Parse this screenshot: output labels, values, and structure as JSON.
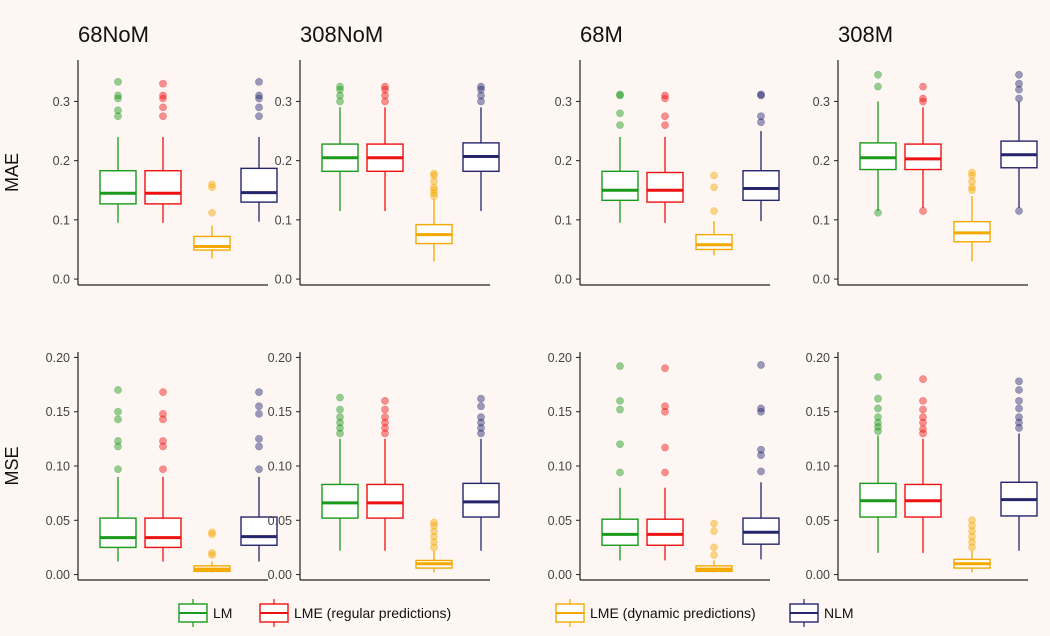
{
  "chart_data": {
    "type": "box",
    "columns": [
      "68NoM",
      "308NoM",
      "68M",
      "308M"
    ],
    "rows": [
      "MAE",
      "MSE"
    ],
    "legend": {
      "placement": "bottom"
    },
    "series": [
      {
        "key": "lm",
        "name": "LM",
        "color": "#1a9a1a"
      },
      {
        "key": "lme_reg",
        "name": "LME (regular predictions)",
        "color": "#ee1111"
      },
      {
        "key": "lme_dyn",
        "name": "LME (dynamic predictions)",
        "color": "#f5a800"
      },
      {
        "key": "nlm",
        "name": "NLM",
        "color": "#25256e"
      }
    ],
    "axes": {
      "MAE": {
        "ylim": [
          -0.01,
          0.37
        ],
        "ticks": [
          0.0,
          0.1,
          0.2,
          0.3
        ],
        "tick_labels": [
          "0.0",
          "0.1",
          "0.2",
          "0.3"
        ]
      },
      "MSE": {
        "ylim": [
          -0.005,
          0.205
        ],
        "ticks": [
          0.0,
          0.05,
          0.1,
          0.15,
          0.2
        ],
        "tick_labels": [
          "0.00",
          "0.05",
          "0.10",
          "0.15",
          "0.20"
        ]
      }
    },
    "panels": [
      {
        "row": "MAE",
        "col": "68NoM",
        "boxes": [
          {
            "series": "lm",
            "min": 0.095,
            "q1": 0.127,
            "median": 0.145,
            "q3": 0.183,
            "max": 0.24,
            "outliers": [
              0.275,
              0.285,
              0.305,
              0.31,
              0.333
            ]
          },
          {
            "series": "lme_reg",
            "min": 0.095,
            "q1": 0.127,
            "median": 0.145,
            "q3": 0.183,
            "max": 0.24,
            "outliers": [
              0.275,
              0.29,
              0.305,
              0.31,
              0.33
            ]
          },
          {
            "series": "lme_dyn",
            "min": 0.035,
            "q1": 0.049,
            "median": 0.055,
            "q3": 0.072,
            "max": 0.09,
            "outliers": [
              0.112,
              0.155,
              0.16
            ]
          },
          {
            "series": "nlm",
            "min": 0.097,
            "q1": 0.13,
            "median": 0.146,
            "q3": 0.187,
            "max": 0.24,
            "outliers": [
              0.275,
              0.29,
              0.305,
              0.31,
              0.333
            ]
          }
        ]
      },
      {
        "row": "MAE",
        "col": "308NoM",
        "boxes": [
          {
            "series": "lm",
            "min": 0.115,
            "q1": 0.182,
            "median": 0.205,
            "q3": 0.228,
            "max": 0.29,
            "outliers": [
              0.3,
              0.31,
              0.32,
              0.325
            ]
          },
          {
            "series": "lme_reg",
            "min": 0.115,
            "q1": 0.182,
            "median": 0.205,
            "q3": 0.228,
            "max": 0.29,
            "outliers": [
              0.3,
              0.31,
              0.32,
              0.325
            ]
          },
          {
            "series": "lme_dyn",
            "min": 0.03,
            "q1": 0.06,
            "median": 0.075,
            "q3": 0.092,
            "max": 0.135,
            "outliers": [
              0.14,
              0.145,
              0.15,
              0.155,
              0.165,
              0.175,
              0.178
            ]
          },
          {
            "series": "nlm",
            "min": 0.115,
            "q1": 0.182,
            "median": 0.207,
            "q3": 0.23,
            "max": 0.29,
            "outliers": [
              0.3,
              0.31,
              0.32,
              0.325
            ]
          }
        ]
      },
      {
        "row": "MAE",
        "col": "68M",
        "boxes": [
          {
            "series": "lm",
            "min": 0.095,
            "q1": 0.133,
            "median": 0.15,
            "q3": 0.182,
            "max": 0.24,
            "outliers": [
              0.26,
              0.28,
              0.31,
              0.312
            ]
          },
          {
            "series": "lme_reg",
            "min": 0.095,
            "q1": 0.13,
            "median": 0.15,
            "q3": 0.18,
            "max": 0.24,
            "outliers": [
              0.26,
              0.275,
              0.305,
              0.31
            ]
          },
          {
            "series": "lme_dyn",
            "min": 0.04,
            "q1": 0.05,
            "median": 0.058,
            "q3": 0.075,
            "max": 0.098,
            "outliers": [
              0.115,
              0.155,
              0.175
            ]
          },
          {
            "series": "nlm",
            "min": 0.098,
            "q1": 0.133,
            "median": 0.153,
            "q3": 0.183,
            "max": 0.25,
            "outliers": [
              0.265,
              0.275,
              0.31,
              0.312
            ]
          }
        ]
      },
      {
        "row": "MAE",
        "col": "308M",
        "boxes": [
          {
            "series": "lm",
            "min": 0.115,
            "q1": 0.185,
            "median": 0.205,
            "q3": 0.23,
            "max": 0.3,
            "outliers": [
              0.112,
              0.325,
              0.345
            ]
          },
          {
            "series": "lme_reg",
            "min": 0.12,
            "q1": 0.185,
            "median": 0.203,
            "q3": 0.228,
            "max": 0.29,
            "outliers": [
              0.115,
              0.3,
              0.305,
              0.325
            ]
          },
          {
            "series": "lme_dyn",
            "min": 0.03,
            "q1": 0.063,
            "median": 0.078,
            "q3": 0.097,
            "max": 0.14,
            "outliers": [
              0.15,
              0.155,
              0.165,
              0.175,
              0.18
            ]
          },
          {
            "series": "nlm",
            "min": 0.12,
            "q1": 0.188,
            "median": 0.21,
            "q3": 0.233,
            "max": 0.3,
            "outliers": [
              0.115,
              0.305,
              0.32,
              0.33,
              0.345
            ]
          }
        ]
      },
      {
        "row": "MSE",
        "col": "68NoM",
        "boxes": [
          {
            "series": "lm",
            "min": 0.012,
            "q1": 0.025,
            "median": 0.034,
            "q3": 0.052,
            "max": 0.09,
            "outliers": [
              0.097,
              0.118,
              0.123,
              0.143,
              0.15,
              0.17
            ]
          },
          {
            "series": "lme_reg",
            "min": 0.012,
            "q1": 0.025,
            "median": 0.034,
            "q3": 0.052,
            "max": 0.09,
            "outliers": [
              0.097,
              0.118,
              0.123,
              0.143,
              0.148,
              0.168
            ]
          },
          {
            "series": "lme_dyn",
            "min": 0.002,
            "q1": 0.003,
            "median": 0.005,
            "q3": 0.008,
            "max": 0.012,
            "outliers": [
              0.018,
              0.02,
              0.037,
              0.039
            ]
          },
          {
            "series": "nlm",
            "min": 0.012,
            "q1": 0.027,
            "median": 0.035,
            "q3": 0.053,
            "max": 0.09,
            "outliers": [
              0.097,
              0.118,
              0.125,
              0.148,
              0.155,
              0.168
            ]
          }
        ]
      },
      {
        "row": "MSE",
        "col": "308NoM",
        "boxes": [
          {
            "series": "lm",
            "min": 0.022,
            "q1": 0.052,
            "median": 0.066,
            "q3": 0.083,
            "max": 0.125,
            "outliers": [
              0.13,
              0.135,
              0.14,
              0.145,
              0.152,
              0.163
            ]
          },
          {
            "series": "lme_reg",
            "min": 0.022,
            "q1": 0.052,
            "median": 0.066,
            "q3": 0.083,
            "max": 0.125,
            "outliers": [
              0.13,
              0.135,
              0.14,
              0.145,
              0.152,
              0.16
            ]
          },
          {
            "series": "lme_dyn",
            "min": 0.002,
            "q1": 0.006,
            "median": 0.01,
            "q3": 0.013,
            "max": 0.022,
            "outliers": [
              0.025,
              0.03,
              0.035,
              0.04,
              0.045,
              0.048
            ]
          },
          {
            "series": "nlm",
            "min": 0.022,
            "q1": 0.053,
            "median": 0.067,
            "q3": 0.084,
            "max": 0.125,
            "outliers": [
              0.13,
              0.135,
              0.14,
              0.145,
              0.155,
              0.162
            ]
          }
        ]
      },
      {
        "row": "MSE",
        "col": "68M",
        "boxes": [
          {
            "series": "lm",
            "min": 0.013,
            "q1": 0.027,
            "median": 0.037,
            "q3": 0.051,
            "max": 0.08,
            "outliers": [
              0.094,
              0.12,
              0.152,
              0.16,
              0.192
            ]
          },
          {
            "series": "lme_reg",
            "min": 0.013,
            "q1": 0.027,
            "median": 0.037,
            "q3": 0.051,
            "max": 0.08,
            "outliers": [
              0.094,
              0.117,
              0.15,
              0.155,
              0.19
            ]
          },
          {
            "series": "lme_dyn",
            "min": 0.002,
            "q1": 0.003,
            "median": 0.005,
            "q3": 0.008,
            "max": 0.013,
            "outliers": [
              0.018,
              0.025,
              0.04,
              0.047
            ]
          },
          {
            "series": "nlm",
            "min": 0.014,
            "q1": 0.028,
            "median": 0.039,
            "q3": 0.052,
            "max": 0.085,
            "outliers": [
              0.095,
              0.11,
              0.115,
              0.15,
              0.153,
              0.193
            ]
          }
        ]
      },
      {
        "row": "MSE",
        "col": "308M",
        "boxes": [
          {
            "series": "lm",
            "min": 0.02,
            "q1": 0.053,
            "median": 0.068,
            "q3": 0.084,
            "max": 0.128,
            "outliers": [
              0.132,
              0.136,
              0.14,
              0.145,
              0.153,
              0.162,
              0.182
            ]
          },
          {
            "series": "lme_reg",
            "min": 0.02,
            "q1": 0.053,
            "median": 0.068,
            "q3": 0.083,
            "max": 0.125,
            "outliers": [
              0.13,
              0.134,
              0.14,
              0.145,
              0.152,
              0.16,
              0.18
            ]
          },
          {
            "series": "lme_dyn",
            "min": 0.002,
            "q1": 0.006,
            "median": 0.01,
            "q3": 0.014,
            "max": 0.022,
            "outliers": [
              0.025,
              0.03,
              0.035,
              0.04,
              0.045,
              0.05
            ]
          },
          {
            "series": "nlm",
            "min": 0.022,
            "q1": 0.054,
            "median": 0.069,
            "q3": 0.085,
            "max": 0.13,
            "outliers": [
              0.135,
              0.14,
              0.145,
              0.153,
              0.16,
              0.17,
              0.178
            ]
          }
        ]
      }
    ]
  }
}
